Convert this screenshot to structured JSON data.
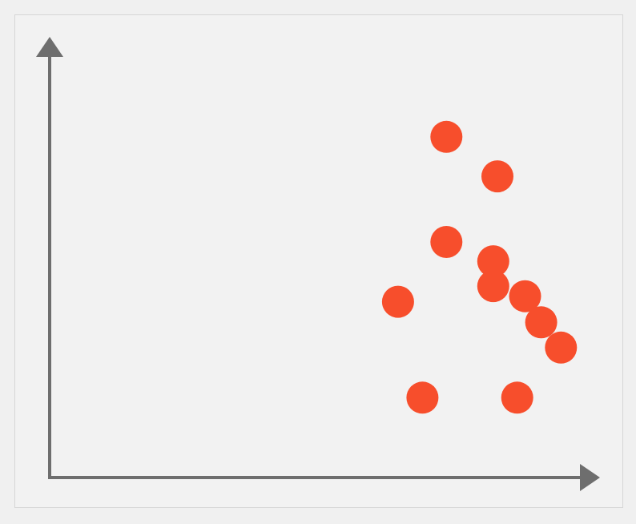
{
  "chart_data": {
    "type": "scatter",
    "title": "",
    "xlabel": "",
    "ylabel": "",
    "grid": false,
    "axis_ticks": false,
    "xlim": [
      0,
      10
    ],
    "ylim": [
      0,
      10
    ],
    "points": [
      {
        "x": 7.62,
        "y": 8.1
      },
      {
        "x": 8.6,
        "y": 7.16
      },
      {
        "x": 7.62,
        "y": 5.6
      },
      {
        "x": 8.52,
        "y": 5.14
      },
      {
        "x": 8.52,
        "y": 4.55
      },
      {
        "x": 9.13,
        "y": 4.31
      },
      {
        "x": 6.69,
        "y": 4.18
      },
      {
        "x": 9.44,
        "y": 3.69
      },
      {
        "x": 9.82,
        "y": 3.09
      },
      {
        "x": 7.16,
        "y": 1.9
      },
      {
        "x": 8.98,
        "y": 1.9
      }
    ]
  },
  "colors": {
    "background": "#f0f0f0",
    "plot_background": "#f2f2f2",
    "frame_border": "#d6d6d6",
    "axis": "#6e6e6e",
    "marker": "#f74e2c"
  },
  "icons": {
    "y_axis_arrow": "arrow-up-icon",
    "x_axis_arrow": "arrow-right-icon"
  }
}
